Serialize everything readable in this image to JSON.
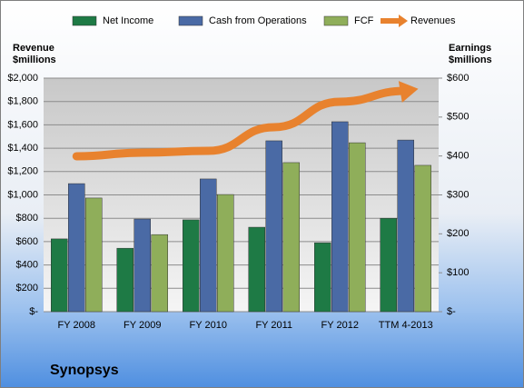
{
  "chart_data": {
    "type": "bar",
    "title": "Synopsys",
    "y_label": "Revenue $millions",
    "y2_label": "Earnings $millions",
    "categories": [
      "FY 2008",
      "FY 2009",
      "FY 2010",
      "FY 2011",
      "FY 2012",
      "TTM 4-2013"
    ],
    "series": [
      {
        "name": "Net Income",
        "color": "#1e7a45",
        "type": "bar",
        "axis": "y2",
        "values": [
          187,
          163,
          236,
          217,
          177,
          240
        ]
      },
      {
        "name": "Cash from Operations",
        "color": "#4a6aa5",
        "type": "bar",
        "axis": "y2",
        "values": [
          329,
          238,
          341,
          439,
          488,
          441
        ]
      },
      {
        "name": "FCF",
        "color": "#8fae5a",
        "type": "bar",
        "axis": "y2",
        "values": [
          292,
          198,
          301,
          383,
          434,
          376
        ]
      },
      {
        "name": "Revenues",
        "color": "#e8822e",
        "type": "line",
        "axis": "y",
        "values": [
          1331,
          1362,
          1377,
          1580,
          1798,
          1891
        ]
      }
    ],
    "ylim": [
      0,
      2000
    ],
    "yticks": [
      {
        "value": 0,
        "label": "$-"
      },
      {
        "value": 200,
        "label": "$200"
      },
      {
        "value": 400,
        "label": "$400"
      },
      {
        "value": 600,
        "label": "$600"
      },
      {
        "value": 800,
        "label": "$800"
      },
      {
        "value": 1000,
        "label": "$1,000"
      },
      {
        "value": 1200,
        "label": "$1,200"
      },
      {
        "value": 1400,
        "label": "$1,400"
      },
      {
        "value": 1600,
        "label": "$1,600"
      },
      {
        "value": 1800,
        "label": "$1,800"
      },
      {
        "value": 2000,
        "label": "$2,000"
      }
    ],
    "y2lim": [
      0,
      600
    ],
    "y2ticks": [
      {
        "value": 0,
        "label": "$-"
      },
      {
        "value": 100,
        "label": "$100"
      },
      {
        "value": 200,
        "label": "$200"
      },
      {
        "value": 300,
        "label": "$300"
      },
      {
        "value": 400,
        "label": "$400"
      },
      {
        "value": 500,
        "label": "$500"
      },
      {
        "value": 600,
        "label": "$600"
      }
    ],
    "grid": true
  }
}
